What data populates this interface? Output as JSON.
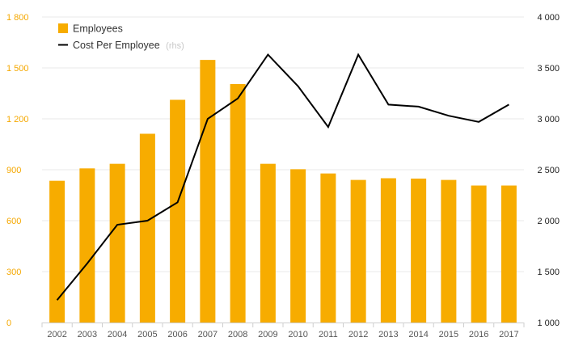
{
  "chart_data": {
    "type": "bar+line",
    "categories": [
      "2002",
      "2003",
      "2004",
      "2005",
      "2006",
      "2007",
      "2008",
      "2009",
      "2010",
      "2011",
      "2012",
      "2013",
      "2014",
      "2015",
      "2016",
      "2017"
    ],
    "series": [
      {
        "name": "Employees",
        "axis": "left",
        "kind": "bar",
        "color": "#f7ac00",
        "values": [
          835,
          908,
          935,
          1112,
          1312,
          1547,
          1405,
          935,
          903,
          878,
          840,
          850,
          848,
          840,
          807,
          807
        ]
      },
      {
        "name": "Cost Per Employee",
        "axis": "right",
        "kind": "line",
        "color": "#000000",
        "values": [
          1220,
          1580,
          1960,
          2000,
          2180,
          3000,
          3200,
          3630,
          3320,
          2920,
          3630,
          3140,
          3120,
          3030,
          2970,
          3140
        ]
      }
    ],
    "legend": {
      "employees": "Employees",
      "cost": "Cost Per Employee",
      "cost_suffix": "(rhs)"
    },
    "y_left": {
      "ylim": [
        0,
        1800
      ],
      "ticks": [
        0,
        300,
        600,
        900,
        1200,
        1500,
        1800
      ],
      "tick_labels": [
        "0",
        "300",
        "600",
        "900",
        "1 200",
        "1 500",
        "1 800"
      ]
    },
    "y_right": {
      "ylim": [
        1000,
        4000
      ],
      "ticks": [
        1000,
        1500,
        2000,
        2500,
        3000,
        3500,
        4000
      ],
      "tick_labels": [
        "1 000",
        "1 500",
        "2 000",
        "2 500",
        "3 000",
        "3 500",
        "4 000"
      ]
    },
    "grid": true
  }
}
